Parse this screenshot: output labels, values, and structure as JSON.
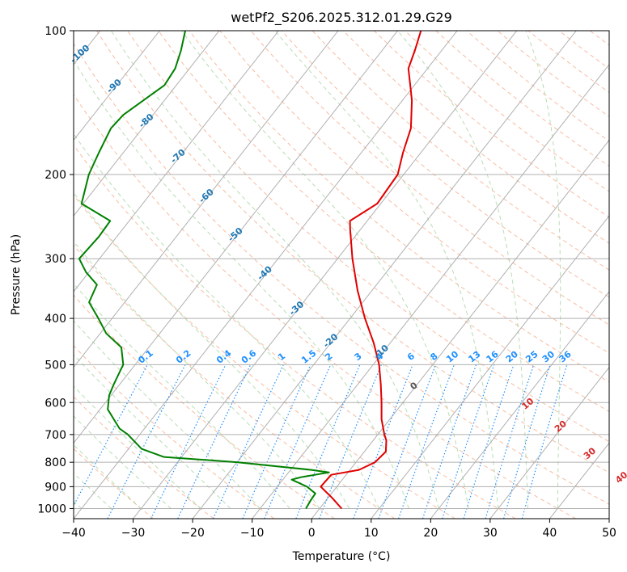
{
  "chart_data": {
    "type": "skew-t",
    "title": "wetPf2_S206.2025.312.01.29.G29",
    "xlabel": "Temperature (°C)",
    "ylabel": "Pressure (hPa)",
    "xlim": [
      -40,
      50
    ],
    "ylim": [
      1050,
      100
    ],
    "x_ticks": [
      -40,
      -30,
      -20,
      -10,
      0,
      10,
      20,
      30,
      40,
      50
    ],
    "x_tick_labels": [
      "−40",
      "−30",
      "−20",
      "−10",
      "0",
      "10",
      "20",
      "30",
      "40",
      "50"
    ],
    "y_ticks": [
      1000,
      900,
      800,
      700,
      600,
      500,
      400,
      300,
      200,
      100
    ],
    "y_tick_labels": [
      "1000",
      "900",
      "800",
      "700",
      "600",
      "500",
      "400",
      "300",
      "200",
      "100"
    ],
    "grid": true,
    "colors": {
      "temperature": "#e00000",
      "dewpoint": "#008000",
      "isotherm": "#b0b0b0",
      "dry_adiabat": "#f4a582",
      "moist_adiabat": "#a6d4a0",
      "mixing_ratio": "#1e90ff",
      "wet_bulb_label": "#1f77b4",
      "theta_label": "#d62728"
    },
    "series": [
      {
        "name": "Temperature",
        "unit": "degC",
        "points": [
          [
            1000,
            3.7
          ],
          [
            950,
            0.7
          ],
          [
            900,
            -2.7
          ],
          [
            850,
            -2.5
          ],
          [
            830,
            1.5
          ],
          [
            800,
            3.2
          ],
          [
            760,
            3.6
          ],
          [
            720,
            2.2
          ],
          [
            700,
            1.1
          ],
          [
            650,
            -1.4
          ],
          [
            600,
            -3.6
          ],
          [
            550,
            -6.1
          ],
          [
            500,
            -9.0
          ],
          [
            450,
            -12.8
          ],
          [
            400,
            -17.5
          ],
          [
            350,
            -22.4
          ],
          [
            300,
            -27.5
          ],
          [
            260,
            -31.8
          ],
          [
            250,
            -32.9
          ],
          [
            230,
            -30.6
          ],
          [
            200,
            -31.0
          ],
          [
            180,
            -33.0
          ],
          [
            160,
            -34.9
          ],
          [
            140,
            -38.4
          ],
          [
            130,
            -40.7
          ],
          [
            120,
            -43.2
          ],
          [
            110,
            -44.5
          ],
          [
            100,
            -46.1
          ]
        ]
      },
      {
        "name": "Dewpoint",
        "unit": "degC",
        "points": [
          [
            1000,
            -2.3
          ],
          [
            960,
            -2.6
          ],
          [
            930,
            -2.7
          ],
          [
            900,
            -5.0
          ],
          [
            870,
            -8.5
          ],
          [
            860,
            -7.3
          ],
          [
            840,
            -3.2
          ],
          [
            830,
            -6.5
          ],
          [
            800,
            -20.0
          ],
          [
            780,
            -33.0
          ],
          [
            750,
            -37.8
          ],
          [
            700,
            -42.0
          ],
          [
            680,
            -44.2
          ],
          [
            620,
            -48.7
          ],
          [
            580,
            -50.3
          ],
          [
            550,
            -51.0
          ],
          [
            520,
            -51.6
          ],
          [
            500,
            -52.0
          ],
          [
            460,
            -54.6
          ],
          [
            430,
            -59.0
          ],
          [
            400,
            -62.3
          ],
          [
            370,
            -66.0
          ],
          [
            340,
            -67.0
          ],
          [
            320,
            -70.5
          ],
          [
            300,
            -73.4
          ],
          [
            270,
            -73.0
          ],
          [
            250,
            -73.2
          ],
          [
            230,
            -80.3
          ],
          [
            200,
            -82.9
          ],
          [
            180,
            -84.1
          ],
          [
            160,
            -85.3
          ],
          [
            150,
            -85.0
          ],
          [
            130,
            -82.0
          ],
          [
            120,
            -82.4
          ],
          [
            110,
            -83.8
          ],
          [
            100,
            -85.7
          ]
        ]
      }
    ],
    "mixing_ratio_labels": [
      "0.1",
      "0.2",
      "0.4",
      "0.6",
      "1",
      "1.5",
      "2",
      "3",
      "4",
      "6",
      "8",
      "10",
      "13",
      "16",
      "20",
      "25",
      "30",
      "36"
    ],
    "wet_bulb_labels": [
      "-100",
      "-90",
      "-80",
      "-70",
      "-60",
      "-50",
      "-40",
      "-30",
      "-20",
      "-10",
      "0"
    ],
    "theta_labels": [
      "10",
      "20",
      "30",
      "40"
    ]
  }
}
